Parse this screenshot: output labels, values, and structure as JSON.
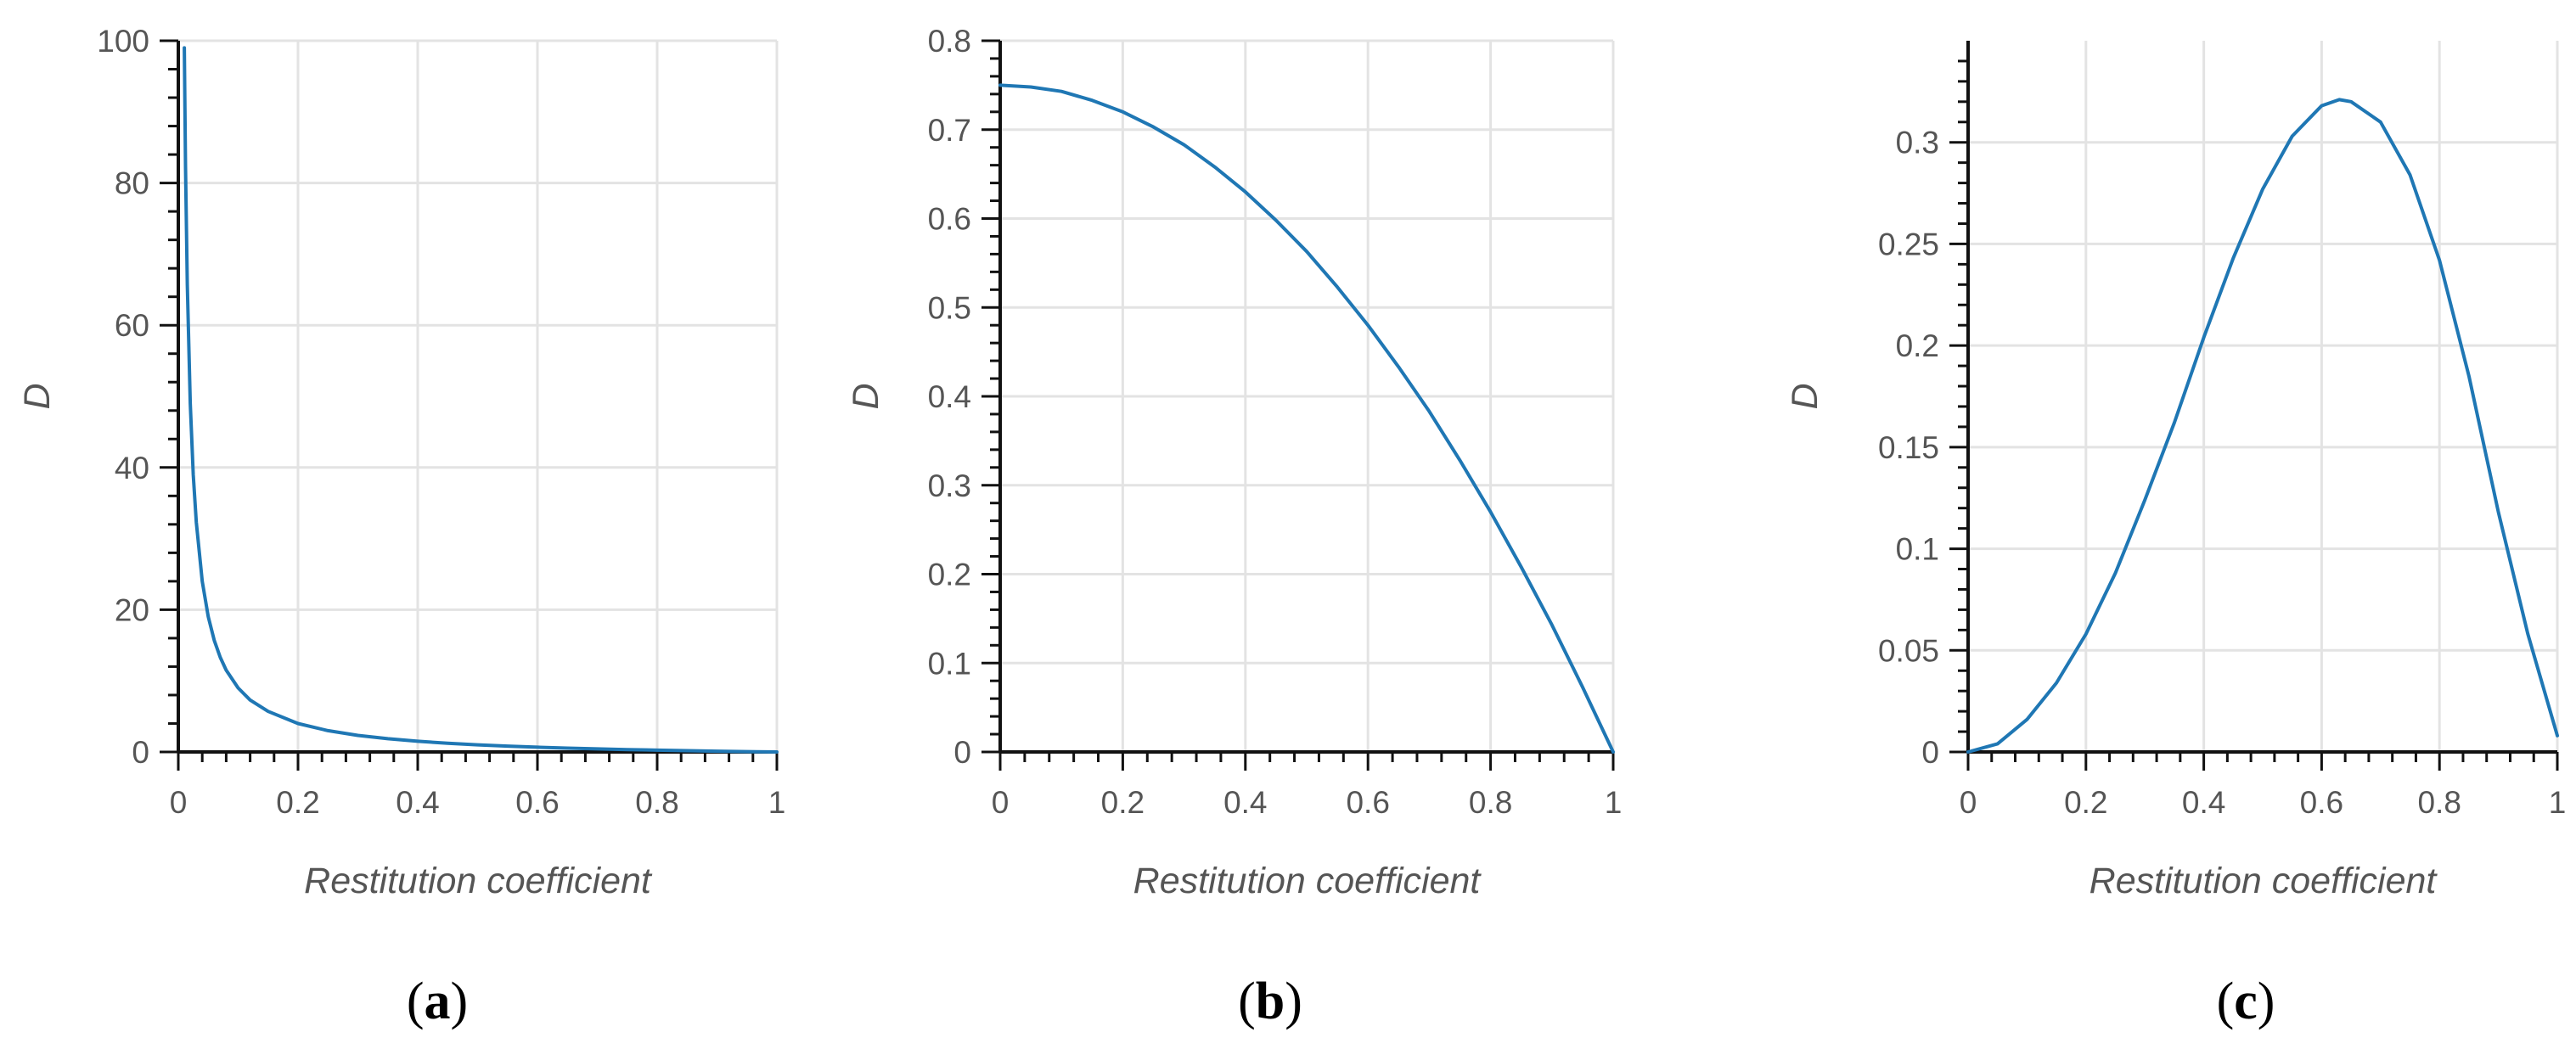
{
  "chart_data": [
    {
      "type": "line",
      "panel_label": "a",
      "xlabel": "Restitution coefficient",
      "ylabel": "D",
      "xlim": [
        0,
        1
      ],
      "ylim": [
        0,
        100
      ],
      "xticks": [
        0,
        0.2,
        0.4,
        0.6,
        0.8,
        1
      ],
      "xtick_labels": [
        "0",
        "0.2",
        "0.4",
        "0.6",
        "0.8",
        "1"
      ],
      "yticks": [
        0,
        20,
        40,
        60,
        80,
        100
      ],
      "ytick_labels": [
        "0",
        "20",
        "40",
        "60",
        "80",
        "100"
      ],
      "grid": true,
      "line_color": "#1f77b4",
      "series": [
        {
          "x": [
            0.01,
            0.012,
            0.015,
            0.02,
            0.025,
            0.03,
            0.04,
            0.05,
            0.06,
            0.07,
            0.08,
            0.1,
            0.12,
            0.15,
            0.2,
            0.25,
            0.3,
            0.35,
            0.4,
            0.45,
            0.5,
            0.55,
            0.6,
            0.65,
            0.7,
            0.75,
            0.8,
            0.85,
            0.9,
            0.95,
            1.0
          ],
          "y": [
            99,
            82.3,
            65.7,
            49,
            39,
            32.3,
            24,
            19,
            15.7,
            13.3,
            11.5,
            9,
            7.3,
            5.7,
            4,
            3,
            2.33,
            1.86,
            1.5,
            1.22,
            1,
            0.82,
            0.67,
            0.54,
            0.43,
            0.33,
            0.25,
            0.18,
            0.11,
            0.05,
            0
          ]
        }
      ]
    },
    {
      "type": "line",
      "panel_label": "b",
      "xlabel": "Restitution coefficient",
      "ylabel": "D",
      "xlim": [
        0,
        1
      ],
      "ylim": [
        0,
        0.8
      ],
      "xticks": [
        0,
        0.2,
        0.4,
        0.6,
        0.8,
        1
      ],
      "xtick_labels": [
        "0",
        "0.2",
        "0.4",
        "0.6",
        "0.8",
        "1"
      ],
      "yticks": [
        0,
        0.1,
        0.2,
        0.3,
        0.4,
        0.5,
        0.6,
        0.7,
        0.8
      ],
      "ytick_labels": [
        "0",
        "0.1",
        "0.2",
        "0.3",
        "0.4",
        "0.5",
        "0.6",
        "0.7",
        "0.8"
      ],
      "grid": true,
      "line_color": "#1f77b4",
      "series": [
        {
          "x": [
            0,
            0.05,
            0.1,
            0.15,
            0.2,
            0.25,
            0.3,
            0.35,
            0.4,
            0.45,
            0.5,
            0.55,
            0.6,
            0.65,
            0.7,
            0.75,
            0.8,
            0.85,
            0.9,
            0.95,
            1.0
          ],
          "y": [
            0.75,
            0.748,
            0.743,
            0.733,
            0.72,
            0.703,
            0.683,
            0.658,
            0.63,
            0.598,
            0.563,
            0.523,
            0.48,
            0.433,
            0.383,
            0.328,
            0.27,
            0.208,
            0.143,
            0.073,
            0
          ]
        }
      ]
    },
    {
      "type": "line",
      "panel_label": "c",
      "xlabel": "Restitution coefficient",
      "ylabel": "D",
      "xlim": [
        0,
        1
      ],
      "ylim": [
        0,
        0.35
      ],
      "xticks": [
        0,
        0.2,
        0.4,
        0.6,
        0.8,
        1
      ],
      "xtick_labels": [
        "0",
        "0.2",
        "0.4",
        "0.6",
        "0.8",
        "1"
      ],
      "yticks": [
        0,
        0.05,
        0.1,
        0.15,
        0.2,
        0.25,
        0.3
      ],
      "ytick_labels": [
        "0",
        "0.05",
        "0.1",
        "0.15",
        "0.2",
        "0.25",
        "0.3"
      ],
      "grid": true,
      "line_color": "#1f77b4",
      "series": [
        {
          "x": [
            0,
            0.05,
            0.1,
            0.15,
            0.2,
            0.25,
            0.3,
            0.35,
            0.4,
            0.45,
            0.5,
            0.55,
            0.6,
            0.63,
            0.65,
            0.7,
            0.75,
            0.8,
            0.85,
            0.9,
            0.95,
            1.0
          ],
          "y": [
            0,
            0.004,
            0.016,
            0.034,
            0.058,
            0.088,
            0.124,
            0.162,
            0.204,
            0.243,
            0.277,
            0.303,
            0.318,
            0.321,
            0.32,
            0.31,
            0.284,
            0.242,
            0.185,
            0.118,
            0.058,
            0.008
          ]
        }
      ]
    }
  ]
}
